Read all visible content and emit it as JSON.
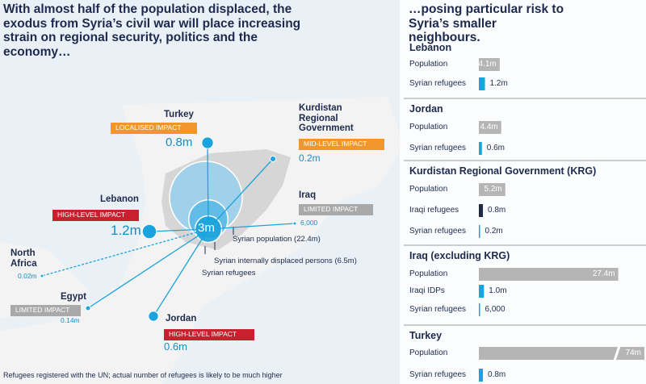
{
  "left": {
    "title": "With almost half of the population displaced, the exodus from Syria’s civil war will place increasing strain on regional security, politics and the economy…",
    "note": "Refugees registered with the UN; actual number of refugees is likely to be much higher",
    "circles": [
      {
        "label": "Syrian population (22.4m)",
        "value": 22.4
      },
      {
        "label": "Syrian internally displaced persons (6.5m)",
        "value": 6.5
      },
      {
        "label": "Syrian refugees",
        "value": 3,
        "value_label": "3m"
      }
    ],
    "countries": [
      {
        "name": "Turkey",
        "impact": "LOCALISED IMPACT",
        "impact_color": "#f0962a",
        "refugees": 0.8,
        "refugees_label": "0.8m"
      },
      {
        "name": "Kurdistan Regional Government",
        "impact": "MID-LEVEL IMPACT",
        "impact_color": "#f0962a",
        "refugees": 0.2,
        "refugees_label": "0.2m"
      },
      {
        "name": "Lebanon",
        "impact": "HIGH-LEVEL IMPACT",
        "impact_color": "#c8202f",
        "refugees": 1.2,
        "refugees_label": "1.2m"
      },
      {
        "name": "Iraq",
        "impact": "LIMITED IMPACT",
        "impact_color": "#a9a9a9",
        "refugees": 0.006,
        "refugees_label": "6,000"
      },
      {
        "name": "North Africa",
        "refugees": 0.02,
        "refugees_label": "0.02m"
      },
      {
        "name": "Egypt",
        "impact": "LIMITED IMPACT",
        "impact_color": "#a9a9a9",
        "refugees": 0.14,
        "refugees_label": "0.14m"
      },
      {
        "name": "Jordan",
        "impact": "HIGH-LEVEL IMPACT",
        "impact_color": "#c8202f",
        "refugees": 0.6,
        "refugees_label": "0.6m"
      }
    ]
  },
  "right": {
    "title": "…posing particular risk to Syria’s smaller neighbours.",
    "panels": [
      {
        "name": "Lebanon",
        "rows": [
          {
            "label": "Population",
            "value": 4.1,
            "value_label": "4.1m",
            "color": "#b5b5b5"
          },
          {
            "label": "Syrian refugees",
            "value": 1.2,
            "value_label": "1.2m",
            "color": "#1aa3dc"
          }
        ]
      },
      {
        "name": "Jordan",
        "rows": [
          {
            "label": "Population",
            "value": 4.4,
            "value_label": "4.4m",
            "color": "#b5b5b5"
          },
          {
            "label": "Syrian refugees",
            "value": 0.6,
            "value_label": "0.6m",
            "color": "#1aa3dc"
          }
        ]
      },
      {
        "name": "Kurdistan Regional Government (KRG)",
        "rows": [
          {
            "label": "Population",
            "value": 5.2,
            "value_label": "5.2m",
            "color": "#b5b5b5"
          },
          {
            "label": "Iraqi refugees",
            "value": 0.8,
            "value_label": "0.8m",
            "color": "#1f2a44"
          },
          {
            "label": "Syrian refugees",
            "value": 0.2,
            "value_label": "0.2m",
            "color": "#1aa3dc"
          }
        ]
      },
      {
        "name": "Iraq (excluding KRG)",
        "rows": [
          {
            "label": "Population",
            "value": 27.4,
            "value_label": "27.4m",
            "color": "#b5b5b5"
          },
          {
            "label": "Iraqi IDPs",
            "value": 1.0,
            "value_label": "1.0m",
            "color": "#1aa3dc"
          },
          {
            "label": "Syrian refugees",
            "value": 0.006,
            "value_label": "6,000",
            "color": "#1aa3dc"
          }
        ]
      },
      {
        "name": "Turkey",
        "rows": [
          {
            "label": "Population",
            "value": 74,
            "value_label": "74m",
            "color": "#b5b5b5"
          },
          {
            "label": "Syrian refugees",
            "value": 0.8,
            "value_label": "0.8m",
            "color": "#1aa3dc"
          }
        ]
      }
    ]
  }
}
